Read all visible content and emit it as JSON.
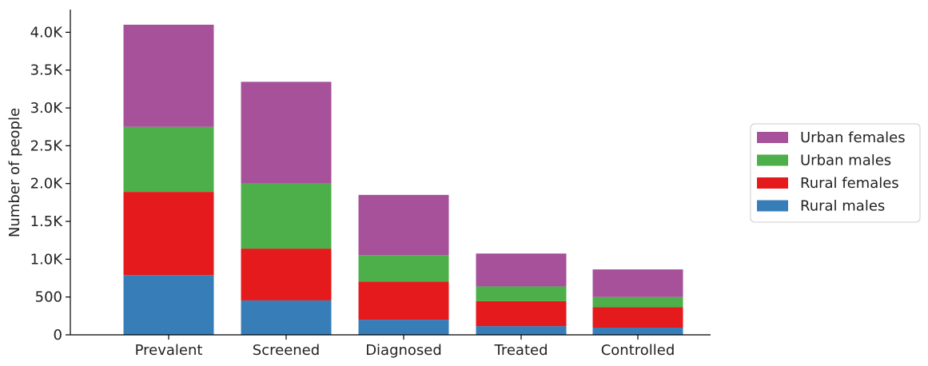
{
  "chart_data": {
    "type": "bar",
    "stacked": true,
    "title": "",
    "xlabel": "",
    "ylabel": "Number of people",
    "ylim": [
      0,
      4300
    ],
    "yticks": [
      0,
      500,
      1000,
      1500,
      2000,
      2500,
      3000,
      3500,
      4000
    ],
    "ytick_labels": [
      "0",
      "500",
      "1.0K",
      "1.5K",
      "2.0K",
      "2.5K",
      "3.0K",
      "3.5K",
      "4.0K"
    ],
    "categories": [
      "Prevalent",
      "Screened",
      "Diagnosed",
      "Treated",
      "Controlled"
    ],
    "series": [
      {
        "name": "Rural males",
        "color": "#377eb8",
        "values": [
          790,
          455,
          200,
          115,
          95
        ]
      },
      {
        "name": "Rural females",
        "color": "#e41a1c",
        "values": [
          1100,
          685,
          505,
          330,
          270
        ]
      },
      {
        "name": "Urban males",
        "color": "#4daf4a",
        "values": [
          860,
          860,
          350,
          195,
          135
        ]
      },
      {
        "name": "Urban females",
        "color": "#a6519a",
        "values": [
          1350,
          1345,
          795,
          435,
          365
        ]
      }
    ],
    "legend_order": [
      "Urban females",
      "Urban males",
      "Rural females",
      "Rural males"
    ],
    "legend_position": "right",
    "grid": false
  }
}
